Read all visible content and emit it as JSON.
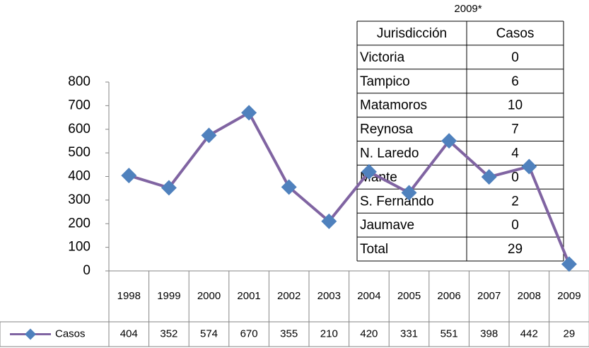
{
  "chart_data": {
    "type": "line",
    "categories": [
      "1998",
      "1999",
      "2000",
      "2001",
      "2002",
      "2003",
      "2004",
      "2005",
      "2006",
      "2007",
      "2008",
      "2009"
    ],
    "series": [
      {
        "name": "Casos",
        "color": "#8064a2",
        "marker_color": "#4f81bd",
        "values": [
          404,
          352,
          574,
          670,
          355,
          210,
          420,
          331,
          551,
          398,
          442,
          29
        ]
      }
    ],
    "ylim": [
      0,
      800
    ],
    "yticks": [
      0,
      100,
      200,
      300,
      400,
      500,
      600,
      700,
      800
    ],
    "grid": false,
    "data_table": true
  },
  "table": {
    "title": "2009*",
    "header": [
      "Jurisdicción",
      "Casos"
    ],
    "rows": [
      [
        "Victoria",
        "0"
      ],
      [
        "Tampico",
        "6"
      ],
      [
        "Matamoros",
        "10"
      ],
      [
        "Reynosa",
        "7"
      ],
      [
        "N. Laredo",
        "4"
      ],
      [
        "Mante",
        "0"
      ],
      [
        "S. Fernando",
        "2"
      ],
      [
        "Jaumave",
        "0"
      ],
      [
        "Total",
        "29"
      ]
    ]
  }
}
